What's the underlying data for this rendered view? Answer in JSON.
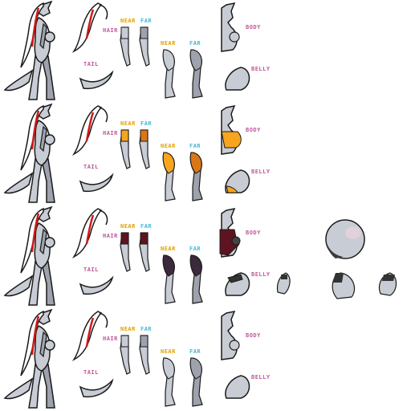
{
  "labels": {
    "hair": "HAIR",
    "tail": "TAIL",
    "near": "NEAR",
    "far": "FAR",
    "body": "BODY",
    "belly": "BELLY"
  },
  "rows": [
    {
      "outfit": "base"
    },
    {
      "outfit": "orange"
    },
    {
      "outfit": "maroon"
    },
    {
      "outfit": "base"
    }
  ],
  "colors": {
    "skin": "#c8ccd4",
    "skin_dark": "#9da2ad",
    "outline": "#1a1a1a",
    "hair_stripe": "#d01818",
    "orange_light": "#f7a51e",
    "orange_dark": "#d97716",
    "maroon": "#5e1420",
    "purple": "#3a2a3c",
    "label_pink": "#c0579a",
    "label_orange": "#e0a000",
    "label_blue": "#44b8d8"
  }
}
